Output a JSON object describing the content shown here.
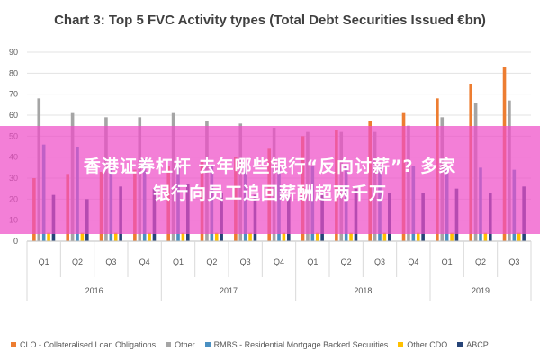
{
  "chart_data": {
    "type": "bar",
    "title": "Chart 3: Top 5 FVC Activity types (Total Debt Securities Issued €bn)",
    "ylim": [
      0,
      90
    ],
    "yticks": [
      0,
      10,
      20,
      30,
      40,
      50,
      60,
      70,
      80,
      90
    ],
    "grid": true,
    "legend_position": "bottom",
    "categories": [
      "Q1",
      "Q2",
      "Q3",
      "Q4",
      "Q1",
      "Q2",
      "Q3",
      "Q4",
      "Q1",
      "Q2",
      "Q3",
      "Q4",
      "Q1",
      "Q2",
      "Q3"
    ],
    "year_groups": [
      {
        "label": "2016",
        "quarters": 4
      },
      {
        "label": "2017",
        "quarters": 4
      },
      {
        "label": "2018",
        "quarters": 4
      },
      {
        "label": "2019",
        "quarters": 3
      }
    ],
    "series": [
      {
        "name": "CLO - Collateralised Loan Obligations",
        "color": "#ED7D31",
        "values": [
          30,
          32,
          33,
          34,
          36,
          38,
          40,
          44,
          50,
          53,
          57,
          61,
          68,
          75,
          83
        ]
      },
      {
        "name": "Other",
        "color": "#A5A5A5",
        "values": [
          68,
          61,
          59,
          59,
          61,
          57,
          56,
          54,
          52,
          52,
          52,
          55,
          59,
          66,
          67
        ]
      },
      {
        "name": "RMBS - Residential Mortgage Backed Securities",
        "color": "#4A90C2",
        "values": [
          46,
          45,
          36,
          39,
          37,
          36,
          35,
          35,
          36,
          36,
          36,
          36,
          35,
          35,
          34
        ]
      },
      {
        "name": "Other CDO",
        "color": "#FFC000",
        "values": [
          4,
          4,
          4,
          4,
          4,
          4,
          4,
          4,
          4,
          4,
          4,
          4,
          4,
          4,
          4
        ]
      },
      {
        "name": "ABCP",
        "color": "#264478",
        "values": [
          22,
          20,
          26,
          25,
          27,
          23,
          22,
          21,
          23,
          25,
          23,
          23,
          25,
          23,
          26
        ]
      }
    ]
  },
  "banner": {
    "line1": "香港证券杠杆 去年哪些银行“反向讨薪”? 多家",
    "line2": "银行向员工追回薪酬超两千万"
  }
}
